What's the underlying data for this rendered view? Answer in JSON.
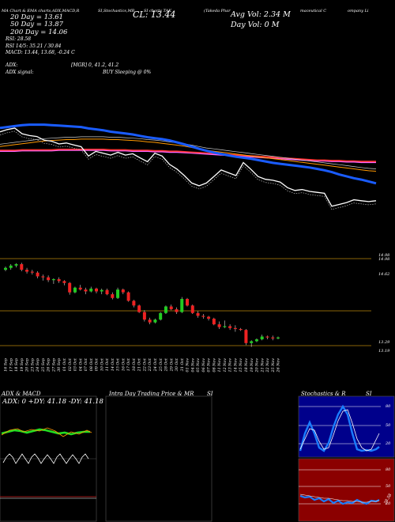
{
  "header": {
    "topline": [
      "MA Chart & EMA charts,ADX,MACD,R",
      "SI,Stochastics,MR",
      "SI charts TAK",
      "(Takeda Phar",
      "maceutical C",
      "ompany Li"
    ],
    "ma20": "20 Day = 13.61",
    "ma50": "50 Day = 13.87",
    "ma200": "200 Day = 14.06",
    "close": "CL: 13.44",
    "avg_vol": "Avg Vol: 2.34  M",
    "day_vol": "Day Vol: 0  M",
    "rsi": "RSI: 28.58",
    "rsi_values": "RSI 14/5: 35.21 / 30.84",
    "macd": "MACD: 13.44, 13.68, -0.24  C",
    "adx": "ADX:",
    "adx_signal": "ADX signal:",
    "mgr": "[MGR] 0, 41.2, 41.2",
    "buy": "BUY Sleeping @ 0%"
  },
  "price_levels": [
    "14.98",
    "14.62",
    "13.29",
    "13.19"
  ],
  "price_levels_top": [
    "14.98",
    "14.98"
  ],
  "panels": {
    "adx_title": "ADX  & MACD",
    "adx_values": "ADX: 0  +DY: 41.18  -DY: 41.18",
    "intra_title": "Intra Day Trading Price  & MR",
    "intra_si": "SI",
    "stoch_title": "Stochastics & R",
    "stoch_si": "SI",
    "stoch_ticks": [
      "80",
      "50",
      "20"
    ],
    "rsi_ticks": [
      "80",
      "50",
      "20"
    ],
    "rsi_value_label": "28.58"
  },
  "colors": {
    "ma_blue": "#1a5cff",
    "ma_orange": "#ff9900",
    "ma_red": "#ff3333",
    "ma_pink": "#ff66ff",
    "candle_up": "#22cc22",
    "candle_down": "#ee2222",
    "guide": "#b8860b"
  },
  "chart_data": {
    "type": "candlestick",
    "categories": [
      "16 Sep",
      "17 Sep",
      "18 Sep",
      "19 Sep",
      "20 Sep",
      "23 Sep",
      "24 Sep",
      "25 Sep",
      "26 Sep",
      "27 Sep",
      "30 Sep",
      "01 Oct",
      "02 Oct",
      "03 Oct",
      "04 Oct",
      "07 Oct",
      "08 Oct",
      "09 Oct",
      "10 Oct",
      "11 Oct",
      "14 Oct",
      "15 Oct",
      "16 Oct",
      "17 Oct",
      "18 Oct",
      "21 Oct",
      "22 Oct",
      "23 Oct",
      "24 Oct",
      "25 Oct",
      "28 Oct",
      "29 Oct",
      "30 Oct",
      "31 Oct",
      "01 Nov",
      "04 Nov",
      "05 Nov",
      "06 Nov",
      "07 Nov",
      "08 Nov",
      "11 Nov",
      "12 Nov",
      "13 Nov",
      "14 Nov",
      "15 Nov",
      "18 Nov",
      "19 Nov",
      "20 Nov",
      "21 Nov",
      "22 Nov",
      "25 Nov",
      "26 Nov"
    ],
    "ohlc": [
      [
        14.88,
        14.95,
        14.85,
        14.92
      ],
      [
        14.92,
        15.0,
        14.88,
        14.97
      ],
      [
        14.97,
        15.02,
        14.93,
        15.0
      ],
      [
        15.0,
        15.03,
        14.85,
        14.88
      ],
      [
        14.88,
        14.92,
        14.8,
        14.84
      ],
      [
        14.84,
        14.88,
        14.78,
        14.82
      ],
      [
        14.82,
        14.85,
        14.7,
        14.74
      ],
      [
        14.74,
        14.78,
        14.65,
        14.72
      ],
      [
        14.72,
        14.76,
        14.62,
        14.66
      ],
      [
        14.66,
        14.7,
        14.58,
        14.68
      ],
      [
        14.68,
        14.72,
        14.6,
        14.64
      ],
      [
        14.64,
        14.66,
        14.55,
        14.6
      ],
      [
        14.6,
        14.62,
        14.35,
        14.4
      ],
      [
        14.4,
        14.52,
        14.38,
        14.5
      ],
      [
        14.5,
        14.56,
        14.44,
        14.46
      ],
      [
        14.46,
        14.5,
        14.36,
        14.42
      ],
      [
        14.42,
        14.52,
        14.4,
        14.48
      ],
      [
        14.48,
        14.5,
        14.38,
        14.42
      ],
      [
        14.42,
        14.48,
        14.36,
        14.45
      ],
      [
        14.45,
        14.48,
        14.34,
        14.36
      ],
      [
        14.36,
        14.4,
        14.25,
        14.28
      ],
      [
        14.28,
        14.5,
        14.26,
        14.46
      ],
      [
        14.46,
        14.48,
        14.36,
        14.4
      ],
      [
        14.4,
        14.42,
        14.2,
        14.22
      ],
      [
        14.22,
        14.24,
        14.08,
        14.12
      ],
      [
        14.12,
        14.14,
        13.96,
        13.98
      ],
      [
        13.98,
        14.02,
        13.78,
        13.82
      ],
      [
        13.82,
        13.86,
        13.72,
        13.76
      ],
      [
        13.76,
        13.84,
        13.74,
        13.82
      ],
      [
        13.82,
        13.98,
        13.8,
        13.96
      ],
      [
        13.96,
        14.12,
        13.94,
        14.1
      ],
      [
        14.1,
        14.14,
        14.02,
        14.04
      ],
      [
        14.04,
        14.08,
        13.94,
        13.98
      ],
      [
        13.98,
        14.3,
        13.96,
        14.26
      ],
      [
        14.26,
        14.28,
        14.1,
        14.12
      ],
      [
        14.12,
        14.14,
        13.94,
        13.96
      ],
      [
        13.96,
        14.0,
        13.86,
        13.9
      ],
      [
        13.9,
        13.94,
        13.84,
        13.88
      ],
      [
        13.88,
        13.9,
        13.8,
        13.84
      ],
      [
        13.84,
        13.86,
        13.7,
        13.72
      ],
      [
        13.72,
        13.78,
        13.62,
        13.66
      ],
      [
        13.66,
        13.8,
        13.64,
        13.68
      ],
      [
        13.68,
        13.72,
        13.6,
        13.64
      ],
      [
        13.64,
        13.7,
        13.56,
        13.62
      ],
      [
        13.62,
        13.64,
        13.58,
        13.6
      ],
      [
        13.6,
        13.62,
        13.28,
        13.32
      ],
      [
        13.32,
        13.38,
        13.24,
        13.36
      ],
      [
        13.36,
        13.42,
        13.34,
        13.4
      ],
      [
        13.4,
        13.5,
        13.38,
        13.46
      ],
      [
        13.46,
        13.48,
        13.4,
        13.44
      ],
      [
        13.44,
        13.48,
        13.38,
        13.42
      ],
      [
        13.42,
        13.46,
        13.4,
        13.44
      ]
    ],
    "ma20": [
      14.8,
      14.82,
      14.84,
      14.86,
      14.87,
      14.87,
      14.87,
      14.86,
      14.85,
      14.84,
      14.83,
      14.82,
      14.79,
      14.77,
      14.75,
      14.72,
      14.7,
      14.68,
      14.66,
      14.63,
      14.6,
      14.58,
      14.56,
      14.53,
      14.49,
      14.45,
      14.4,
      14.35,
      14.31,
      14.27,
      14.24,
      14.21,
      14.18,
      14.16,
      14.14,
      14.11,
      14.08,
      14.05,
      14.03,
      14.01,
      13.99,
      13.97,
      13.95,
      13.92,
      13.89,
      13.85,
      13.8,
      13.76,
      13.72,
      13.69,
      13.65,
      13.61
    ],
    "ma50": [
      14.4,
      14.42,
      14.44,
      14.46,
      14.48,
      14.5,
      14.52,
      14.53,
      14.54,
      14.55,
      14.55,
      14.56,
      14.56,
      14.56,
      14.56,
      14.55,
      14.55,
      14.54,
      14.53,
      14.52,
      14.5,
      14.49,
      14.47,
      14.45,
      14.43,
      14.41,
      14.38,
      14.35,
      14.32,
      14.3,
      14.28,
      14.26,
      14.24,
      14.22,
      14.2,
      14.18,
      14.16,
      14.14,
      14.12,
      14.1,
      14.08,
      14.06,
      14.04,
      14.02,
      14.0,
      13.98,
      13.96,
      13.94,
      13.92,
      13.9,
      13.88,
      13.87
    ],
    "ma200": [
      14.3,
      14.3,
      14.3,
      14.31,
      14.31,
      14.31,
      14.31,
      14.31,
      14.32,
      14.32,
      14.32,
      14.32,
      14.32,
      14.32,
      14.32,
      14.31,
      14.31,
      14.31,
      14.3,
      14.3,
      14.3,
      14.29,
      14.29,
      14.28,
      14.28,
      14.27,
      14.26,
      14.25,
      14.24,
      14.23,
      14.22,
      14.21,
      14.2,
      14.19,
      14.18,
      14.17,
      14.16,
      14.15,
      14.14,
      14.13,
      14.12,
      14.11,
      14.1,
      14.09,
      14.09,
      14.08,
      14.08,
      14.07,
      14.07,
      14.06,
      14.06,
      14.06
    ]
  }
}
